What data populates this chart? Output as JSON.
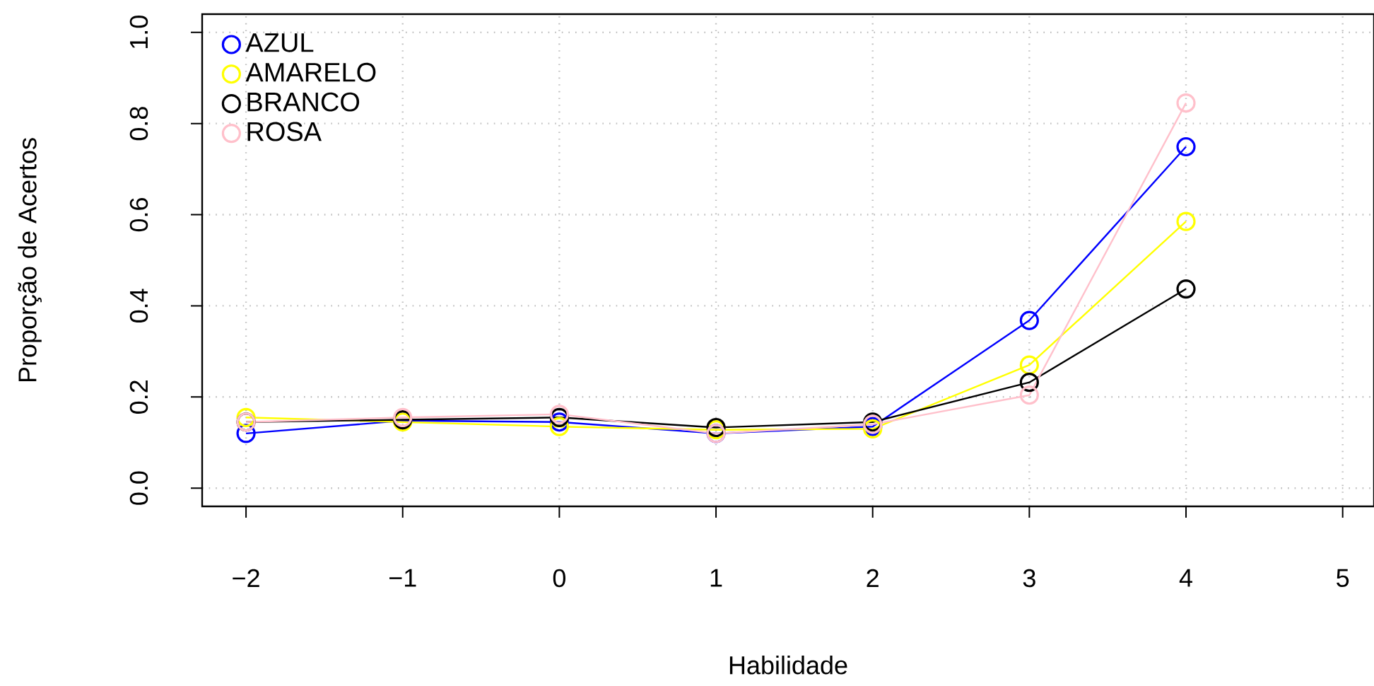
{
  "chart_data": {
    "type": "line",
    "xlabel": "Habilidade",
    "ylabel": "Proporção de Acertos",
    "x": [
      -2,
      -1,
      0,
      1,
      2,
      3,
      4
    ],
    "series": [
      {
        "name": "AZUL",
        "color": "#0000ff",
        "values": [
          0.12,
          0.148,
          0.145,
          0.12,
          0.135,
          0.368,
          0.749
        ]
      },
      {
        "name": "AMARELO",
        "color": "#ffff00",
        "values": [
          0.155,
          0.145,
          0.135,
          0.128,
          0.13,
          0.27,
          0.585
        ]
      },
      {
        "name": "BRANCO",
        "color": "#000000",
        "values": [
          0.145,
          0.15,
          0.155,
          0.133,
          0.145,
          0.232,
          0.437
        ]
      },
      {
        "name": "ROSA",
        "color": "#ffc0cb",
        "values": [
          0.145,
          0.155,
          0.162,
          0.12,
          0.14,
          0.204,
          0.845
        ]
      }
    ],
    "xlim": [
      -2.28,
      5.2
    ],
    "ylim": [
      -0.04,
      1.04
    ],
    "xticks": [
      {
        "value": -2,
        "label": "−2"
      },
      {
        "value": -1,
        "label": "−1"
      },
      0,
      1,
      2,
      3,
      4,
      5
    ],
    "yticks": [
      {
        "value": 0,
        "label": "0.0"
      },
      {
        "value": 0.2,
        "label": "0.2"
      },
      {
        "value": 0.4,
        "label": "0.4"
      },
      {
        "value": 0.6,
        "label": "0.6"
      },
      {
        "value": 0.8,
        "label": "0.8"
      },
      {
        "value": 1,
        "label": "1.0"
      }
    ],
    "grid": true,
    "legend": "top left",
    "marker": "circle",
    "line_style": "solid"
  }
}
